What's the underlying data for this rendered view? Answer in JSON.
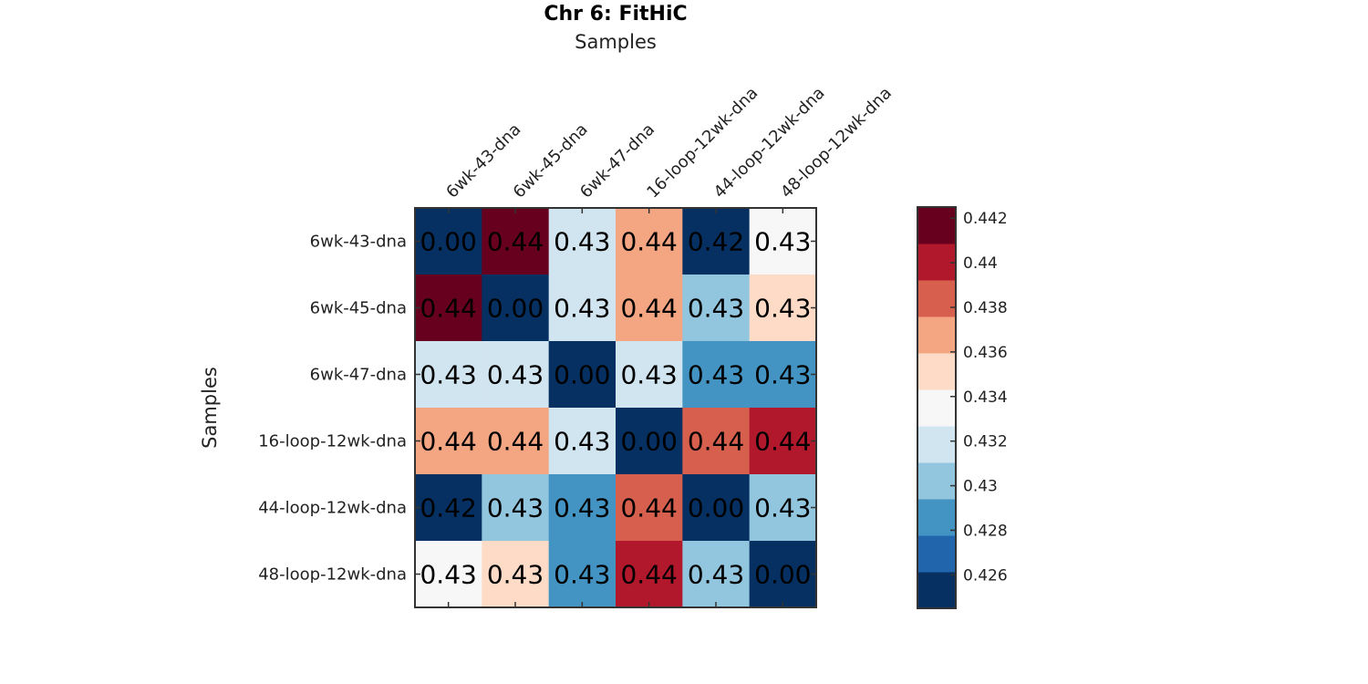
{
  "chart_data": {
    "type": "heatmap",
    "title": "Chr 6: FitHiC",
    "xlabel": "Samples",
    "ylabel": "Samples",
    "x_axis_position": "top",
    "categories": [
      "6wk-43-dna",
      "6wk-45-dna",
      "6wk-47-dna",
      "16-loop-12wk-dna",
      "44-loop-12wk-dna",
      "48-loop-12wk-dna"
    ],
    "values": [
      [
        0.0,
        0.442,
        0.432,
        0.4365,
        0.425,
        0.434
      ],
      [
        0.442,
        0.0,
        0.432,
        0.4365,
        0.43,
        0.435
      ],
      [
        0.432,
        0.432,
        0.0,
        0.432,
        0.429,
        0.429
      ],
      [
        0.4365,
        0.4365,
        0.432,
        0.0,
        0.438,
        0.44
      ],
      [
        0.425,
        0.43,
        0.429,
        0.438,
        0.0,
        0.43
      ],
      [
        0.434,
        0.435,
        0.429,
        0.44,
        0.43,
        0.0
      ]
    ],
    "cell_labels": [
      [
        "0.00",
        "0.44",
        "0.43",
        "0.44",
        "0.42",
        "0.43"
      ],
      [
        "0.44",
        "0.00",
        "0.43",
        "0.44",
        "0.43",
        "0.43"
      ],
      [
        "0.43",
        "0.43",
        "0.00",
        "0.43",
        "0.43",
        "0.43"
      ],
      [
        "0.44",
        "0.44",
        "0.43",
        "0.00",
        "0.44",
        "0.44"
      ],
      [
        "0.42",
        "0.43",
        "0.43",
        "0.44",
        "0.00",
        "0.43"
      ],
      [
        "0.43",
        "0.43",
        "0.43",
        "0.44",
        "0.43",
        "0.00"
      ]
    ],
    "colorbar": {
      "range": [
        0.4245,
        0.4425
      ],
      "ticks": [
        0.426,
        0.428,
        0.43,
        0.432,
        0.434,
        0.436,
        0.438,
        0.44,
        0.442
      ],
      "tick_labels": [
        "0.426",
        "0.428",
        "0.43",
        "0.432",
        "0.434",
        "0.436",
        "0.438",
        "0.44",
        "0.442"
      ],
      "colors": [
        "#053061",
        "#2166ac",
        "#4393c3",
        "#92c5de",
        "#d1e5f0",
        "#f7f7f7",
        "#fddbc7",
        "#f4a582",
        "#d6604d",
        "#b2182b",
        "#67001f"
      ]
    },
    "grid": false
  }
}
